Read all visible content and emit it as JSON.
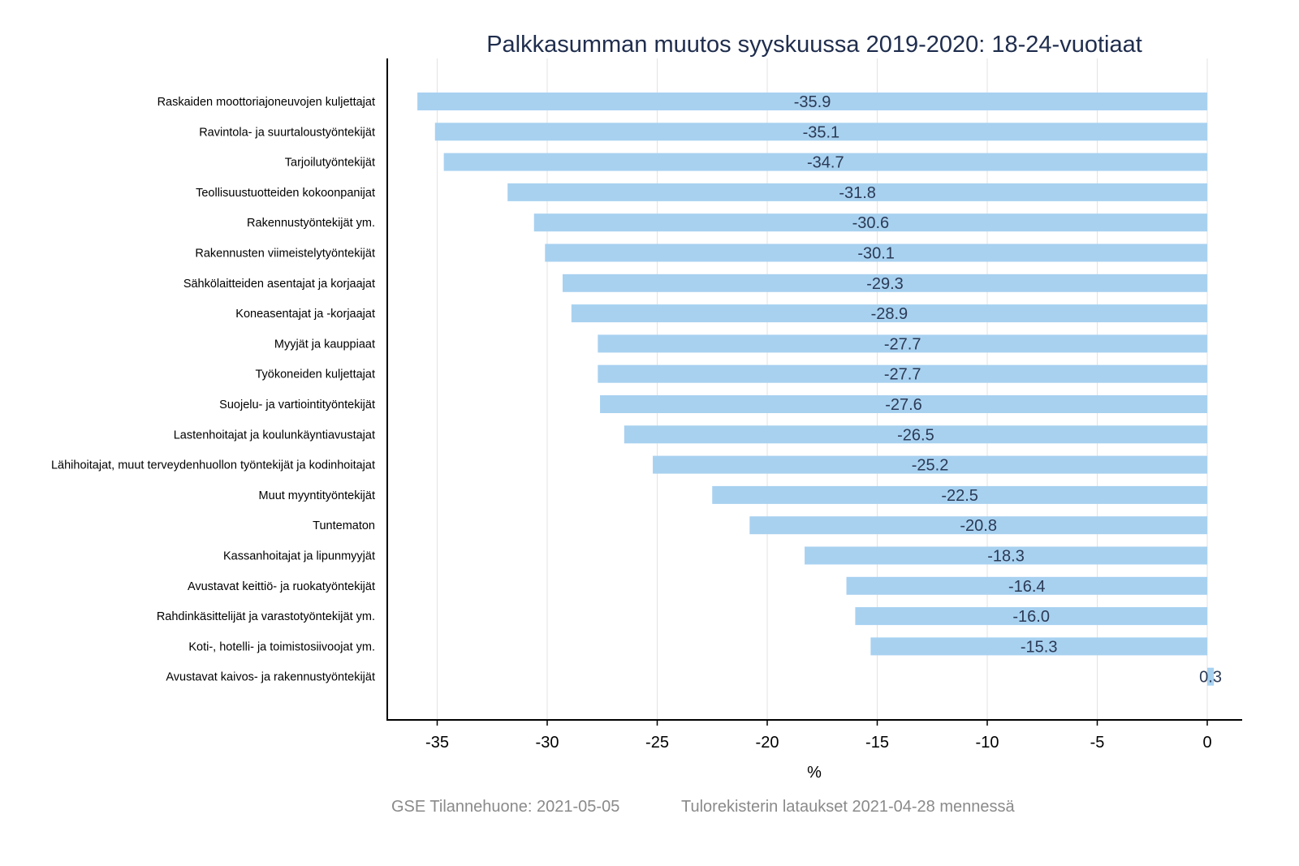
{
  "chart_data": {
    "type": "bar",
    "orientation": "horizontal",
    "title": "Palkkasumman muutos syyskuussa 2019-2020: 18-24-vuotiaat",
    "xlabel": "%",
    "ylabel": "",
    "xlim": [
      -37.2,
      1.6
    ],
    "xticks": [
      -35,
      -30,
      -25,
      -20,
      -15,
      -10,
      -5,
      0
    ],
    "grid": "vertical",
    "legend": "none",
    "categories": [
      "Raskaiden moottoriajoneuvojen kuljettajat",
      "Ravintola- ja suurtaloustyöntekijät",
      "Tarjoilutyöntekijät",
      "Teollisuustuotteiden kokoonpanijat",
      "Rakennustyöntekijät ym.",
      "Rakennusten viimeistelytyöntekijät",
      "Sähkölaitteiden asentajat ja korjaajat",
      "Koneasentajat ja -korjaajat",
      "Myyjät ja kauppiaat",
      "Työkoneiden kuljettajat",
      "Suojelu- ja vartiointityöntekijät",
      "Lastenhoitajat ja koulunkäyntiavustajat",
      "Lähihoitajat, muut terveydenhuollon työntekijät ja kodinhoitajat",
      "Muut myyntityöntekijät",
      "Tuntematon",
      "Kassanhoitajat ja lipunmyyjät",
      "Avustavat keittiö- ja ruokatyöntekijät",
      "Rahdinkäsittelijät ja varastotyöntekijät ym.",
      "Koti-, hotelli- ja toimistosiivoojat ym.",
      "Avustavat kaivos- ja rakennustyöntekijät"
    ],
    "values": [
      -35.9,
      -35.1,
      -34.7,
      -31.8,
      -30.6,
      -30.1,
      -29.3,
      -28.9,
      -27.7,
      -27.7,
      -27.6,
      -26.5,
      -25.2,
      -22.5,
      -20.8,
      -18.3,
      -16.4,
      -16.0,
      -15.3,
      0.3
    ],
    "value_labels": [
      "-35.9",
      "-35.1",
      "-34.7",
      "-31.8",
      "-30.6",
      "-30.1",
      "-29.3",
      "-28.9",
      "-27.7",
      "-27.7",
      "-27.6",
      "-26.5",
      "-25.2",
      "-22.5",
      "-20.8",
      "-18.3",
      "-16.4",
      "-16.0",
      "-15.3",
      "0.3"
    ],
    "tick_labels": [
      "-35",
      "-30",
      "-25",
      "-20",
      "-15",
      "-10",
      "-5",
      "0"
    ],
    "bar_color": "#a8d1f0",
    "grid_color": "#e3e3e3",
    "title_color": "#1f2d4d"
  },
  "footer": {
    "source": "GSE Tilannehuone: 2021-05-05",
    "note": "Tulorekisterin lataukset 2021-04-28 mennessä"
  }
}
